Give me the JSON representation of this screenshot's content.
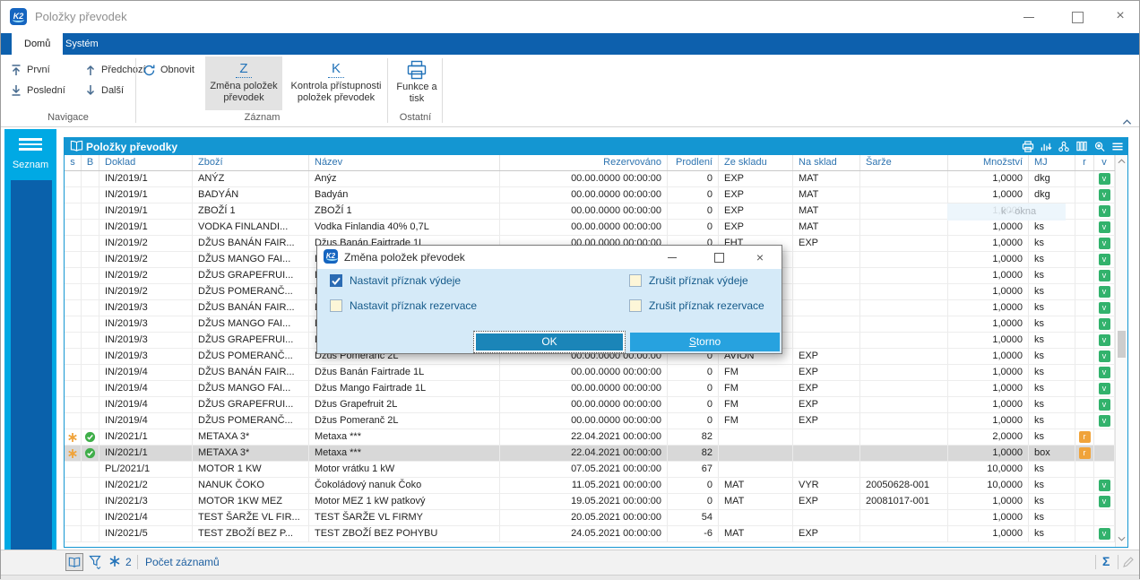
{
  "colors": {
    "tabbar_bg": "#0d60ad",
    "panel_header_bg": "#1496d2",
    "sidebar_bg": "#00a9e4",
    "sidebar_inner": "#0a61ab",
    "accent_blue": "#2273b9",
    "header_text_blue": "#2e74b0",
    "ok_button": "#1b85b8",
    "storno_button": "#27a2df",
    "dialog_bg": "#d5eaf8",
    "badge_green": "#32b26c",
    "badge_orange": "#f0a33a",
    "selected_row": "#d8d8d8"
  },
  "window": {
    "title": "Položky převodek",
    "logo": "K2",
    "controls": {
      "minimize": "minimize",
      "maximize": "maximize",
      "close": "×"
    }
  },
  "tabs": [
    {
      "label": "Domů",
      "active": true
    },
    {
      "label": "Systém",
      "active": false
    }
  ],
  "ribbon": {
    "nav": {
      "first": "První",
      "last": "Poslední",
      "prev": "Předchozí",
      "next": "Další",
      "group_label": "Navigace"
    },
    "record": {
      "refresh": "Obnovit",
      "change": "Změna položek převodek",
      "change_glyph": "Z",
      "check": "Kontrola přístupnosti položek převodek",
      "check_glyph": "K",
      "group_label": "Záznam"
    },
    "other": {
      "print": "Funkce a tisk",
      "group_label": "Ostatní"
    }
  },
  "sidebar": {
    "label": "Seznam",
    "icon": "menu-icon"
  },
  "grid": {
    "title": "Položky převodky",
    "title_icon": "book-icon",
    "header_icons": [
      "printer-icon",
      "chart-icon",
      "share-icon",
      "columns-icon",
      "zoom-settings-icon",
      "menu-icon"
    ],
    "columns": [
      "s",
      "B",
      "Doklad",
      "Zboží",
      "Název",
      "Rezervováno",
      "Prodlení",
      "Ze skladu",
      "Na sklad",
      "Šarže",
      "Množství",
      "MJ",
      "r",
      "v"
    ],
    "selected_row": 17,
    "tooltip": {
      "text": "k - okna",
      "row": 2
    },
    "rows": [
      [
        "",
        "",
        "IN/2019/1",
        "ANÝZ",
        "Anýz",
        "00.00.0000 00:00:00",
        "0",
        "EXP",
        "MAT",
        "",
        "1,0000",
        "dkg",
        "",
        "v"
      ],
      [
        "",
        "",
        "IN/2019/1",
        "BADYÁN",
        "Badyán",
        "00.00.0000 00:00:00",
        "0",
        "EXP",
        "MAT",
        "",
        "1,0000",
        "dkg",
        "",
        "v"
      ],
      [
        "",
        "",
        "IN/2019/1",
        "ZBOŽÍ 1",
        "ZBOŽÍ 1",
        "00.00.0000 00:00:00",
        "0",
        "EXP",
        "MAT",
        "",
        "1,0000",
        "",
        "",
        "v"
      ],
      [
        "",
        "",
        "IN/2019/1",
        "VODKA FINLANDI...",
        "Vodka Finlandia 40% 0,7L",
        "00.00.0000 00:00:00",
        "0",
        "EXP",
        "MAT",
        "",
        "1,0000",
        "ks",
        "",
        "v"
      ],
      [
        "",
        "",
        "IN/2019/2",
        "DŽUS BANÁN FAIR...",
        "Džus Banán Fairtrade 1L",
        "00.00.0000 00:00:00",
        "0",
        "FHT",
        "EXP",
        "",
        "1,0000",
        "ks",
        "",
        "v"
      ],
      [
        "",
        "",
        "IN/2019/2",
        "DŽUS MANGO FAI...",
        "Džus Mango Fairtrade 1L",
        "",
        "",
        "",
        "",
        "",
        "1,0000",
        "ks",
        "",
        "v"
      ],
      [
        "",
        "",
        "IN/2019/2",
        "DŽUS GRAPEFRUI...",
        "Džus Grapefruit 2L",
        "",
        "",
        "",
        "",
        "",
        "1,0000",
        "ks",
        "",
        "v"
      ],
      [
        "",
        "",
        "IN/2019/2",
        "DŽUS POMERANČ...",
        "Džus Pomeranč 2L",
        "",
        "",
        "",
        "",
        "",
        "1,0000",
        "ks",
        "",
        "v"
      ],
      [
        "",
        "",
        "IN/2019/3",
        "DŽUS BANÁN FAIR...",
        "Džus Banán Fairtrade 1L",
        "",
        "",
        "",
        "",
        "",
        "1,0000",
        "ks",
        "",
        "v"
      ],
      [
        "",
        "",
        "IN/2019/3",
        "DŽUS MANGO FAI...",
        "Džus Mango Fairtrade 1L",
        "",
        "",
        "",
        "",
        "",
        "1,0000",
        "ks",
        "",
        "v"
      ],
      [
        "",
        "",
        "IN/2019/3",
        "DŽUS GRAPEFRUI...",
        "Džus Grapefruit 2L",
        "",
        "",
        "",
        "",
        "",
        "1,0000",
        "ks",
        "",
        "v"
      ],
      [
        "",
        "",
        "IN/2019/3",
        "DŽUS POMERANČ...",
        "Džus Pomeranč 2L",
        "00.00.0000 00:00:00",
        "0",
        "AVION",
        "EXP",
        "",
        "1,0000",
        "ks",
        "",
        "v"
      ],
      [
        "",
        "",
        "IN/2019/4",
        "DŽUS BANÁN FAIR...",
        "Džus Banán Fairtrade 1L",
        "00.00.0000 00:00:00",
        "0",
        "FM",
        "EXP",
        "",
        "1,0000",
        "ks",
        "",
        "v"
      ],
      [
        "",
        "",
        "IN/2019/4",
        "DŽUS MANGO FAI...",
        "Džus Mango Fairtrade 1L",
        "00.00.0000 00:00:00",
        "0",
        "FM",
        "EXP",
        "",
        "1,0000",
        "ks",
        "",
        "v"
      ],
      [
        "",
        "",
        "IN/2019/4",
        "DŽUS GRAPEFRUI...",
        "Džus Grapefruit 2L",
        "00.00.0000 00:00:00",
        "0",
        "FM",
        "EXP",
        "",
        "1,0000",
        "ks",
        "",
        "v"
      ],
      [
        "",
        "",
        "IN/2019/4",
        "DŽUS POMERANČ...",
        "Džus Pomeranč 2L",
        "00.00.0000 00:00:00",
        "0",
        "FM",
        "EXP",
        "",
        "1,0000",
        "ks",
        "",
        "v"
      ],
      [
        "star",
        "check",
        "IN/2021/1",
        "METAXA 3*",
        "Metaxa ***",
        "22.04.2021 00:00:00",
        "82",
        "",
        "",
        "",
        "2,0000",
        "ks",
        "r",
        ""
      ],
      [
        "star",
        "check",
        "IN/2021/1",
        "METAXA 3*",
        "Metaxa ***",
        "22.04.2021 00:00:00",
        "82",
        "",
        "",
        "",
        "1,0000",
        "box",
        "r",
        ""
      ],
      [
        "",
        "",
        "PL/2021/1",
        "MOTOR 1 KW",
        "Motor vrátku 1 kW",
        "07.05.2021 00:00:00",
        "67",
        "",
        "",
        "",
        "10,0000",
        "ks",
        "",
        ""
      ],
      [
        "",
        "",
        "IN/2021/2",
        "NANUK ČOKO",
        "Čokoládový nanuk Čoko",
        "11.05.2021 00:00:00",
        "0",
        "MAT",
        "VYR",
        "20050628-001",
        "10,0000",
        "ks",
        "",
        "v"
      ],
      [
        "",
        "",
        "IN/2021/3",
        "MOTOR 1KW MEZ",
        "Motor MEZ 1 kW patkový",
        "19.05.2021 00:00:00",
        "0",
        "MAT",
        "EXP",
        "20081017-001",
        "1,0000",
        "ks",
        "",
        "v"
      ],
      [
        "",
        "",
        "IN/2021/4",
        "TEST ŠARŽE VL FIR...",
        "TEST ŠARŽE VL FIRMY",
        "20.05.2021 00:00:00",
        "54",
        "",
        "",
        "",
        "1,0000",
        "ks",
        "",
        ""
      ],
      [
        "",
        "",
        "IN/2021/5",
        "TEST ZBOŽÍ BEZ P...",
        "TEST ZBOŽÍ BEZ POHYBU",
        "24.05.2021 00:00:00",
        "-6",
        "MAT",
        "EXP",
        "",
        "1,0000",
        "ks",
        "",
        "v"
      ]
    ]
  },
  "dialog": {
    "title": "Změna položek převodek",
    "logo": "K2",
    "checkboxes": [
      {
        "label": "Nastavit příznak výdeje",
        "checked": true
      },
      {
        "label": "Zrušit příznak výdeje",
        "checked": false
      },
      {
        "label": "Nastavit příznak rezervace",
        "checked": false
      },
      {
        "label": "Zrušit příznak rezervace",
        "checked": false
      }
    ],
    "ok": "OK",
    "cancel": "Storno"
  },
  "statusbar": {
    "icons": [
      "book-icon",
      "filter-icon",
      "snowflake-icon"
    ],
    "count": "2",
    "label": "Počet záznamů",
    "right_icons": [
      "sigma-icon",
      "pencil-icon"
    ],
    "sigma": "Σ"
  }
}
